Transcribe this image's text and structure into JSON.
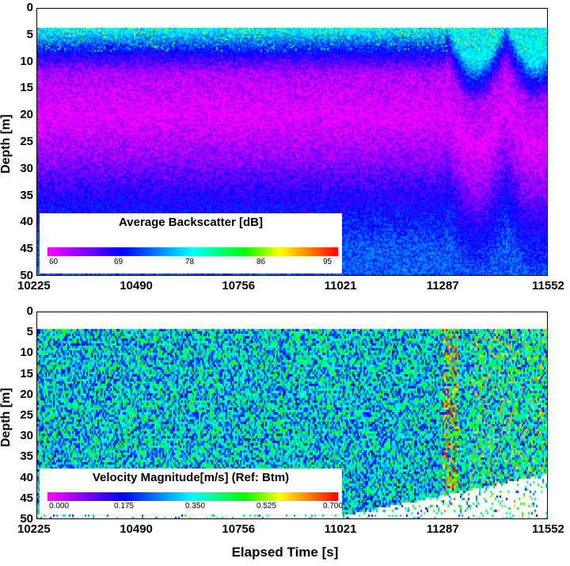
{
  "chart_data": [
    {
      "type": "heatmap",
      "id": "backscatter",
      "title": "Average Backscatter [dB]",
      "ylabel": "Depth [m]",
      "xlabel": "",
      "xticks": [
        "10225",
        "10490",
        "10756",
        "11021",
        "11287",
        "11552"
      ],
      "xlim": [
        10225,
        11552
      ],
      "yticks": [
        "0",
        "5",
        "10",
        "15",
        "20",
        "25",
        "30",
        "35",
        "40",
        "45",
        "50"
      ],
      "ylim": [
        0,
        50
      ],
      "colorbar": {
        "ticks": [
          "60",
          "69",
          "78",
          "86",
          "95"
        ],
        "range": [
          60,
          95
        ]
      },
      "profile_depth": [
        4,
        8,
        12,
        20,
        28,
        35,
        45
      ],
      "profile_value_db": [
        77,
        69,
        63,
        61,
        64,
        68,
        72
      ]
    },
    {
      "type": "heatmap",
      "id": "velocity",
      "title": "Velocity Magnitude[m/s] (Ref: Btm)",
      "ylabel": "Depth [m]",
      "xlabel": "Elapsed Time [s]",
      "xticks": [
        "10225",
        "10490",
        "10756",
        "11021",
        "11287",
        "11552"
      ],
      "xlim": [
        10225,
        11552
      ],
      "yticks": [
        "0",
        "5",
        "10",
        "15",
        "20",
        "25",
        "30",
        "35",
        "40",
        "45",
        "50"
      ],
      "ylim": [
        0,
        50
      ],
      "colorbar": {
        "ticks": [
          "0.000",
          "0.175",
          "0.350",
          "0.525",
          "0.700"
        ],
        "range": [
          0,
          0.7
        ]
      },
      "typical_range_ms": [
        0.15,
        0.5
      ]
    }
  ]
}
